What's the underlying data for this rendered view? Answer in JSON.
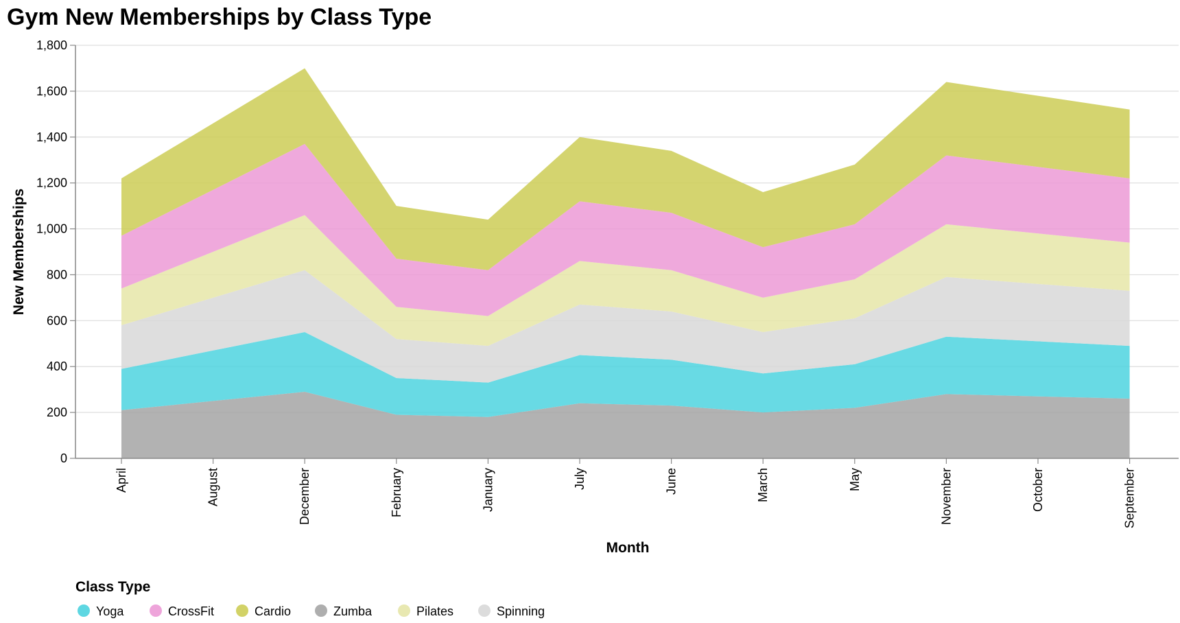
{
  "chart_data": {
    "type": "area",
    "stacked": true,
    "title": "Gym New Memberships by Class Type",
    "xlabel": "Month",
    "ylabel": "New Memberships",
    "ylim": [
      0,
      1800
    ],
    "yticks": [
      0,
      200,
      400,
      600,
      800,
      1000,
      1200,
      1400,
      1600,
      1800
    ],
    "ytick_labels": [
      "0",
      "200",
      "400",
      "600",
      "800",
      "1,000",
      "1,200",
      "1,400",
      "1,600",
      "1,800"
    ],
    "grid": true,
    "categories": [
      "April",
      "August",
      "December",
      "February",
      "January",
      "July",
      "June",
      "March",
      "May",
      "November",
      "October",
      "September"
    ],
    "stack_order": [
      "Zumba",
      "Yoga",
      "Spinning",
      "Pilates",
      "CrossFit",
      "Cardio"
    ],
    "series": [
      {
        "name": "Yoga",
        "color": "#4dd3df",
        "values": [
          180,
          220,
          260,
          160,
          150,
          210,
          200,
          170,
          190,
          250,
          240,
          230
        ]
      },
      {
        "name": "CrossFit",
        "color": "#ec9ad6",
        "values": [
          230,
          270,
          310,
          210,
          200,
          260,
          250,
          220,
          240,
          300,
          290,
          280
        ]
      },
      {
        "name": "Cardio",
        "color": "#cdcd56",
        "values": [
          250,
          290,
          330,
          230,
          220,
          280,
          270,
          240,
          260,
          320,
          310,
          300
        ]
      },
      {
        "name": "Zumba",
        "color": "#a5a5a5",
        "values": [
          210,
          250,
          290,
          190,
          180,
          240,
          230,
          200,
          220,
          280,
          270,
          260
        ]
      },
      {
        "name": "Pilates",
        "color": "#e6e6a8",
        "values": [
          160,
          200,
          240,
          140,
          130,
          190,
          180,
          150,
          170,
          230,
          220,
          210
        ]
      },
      {
        "name": "Spinning",
        "color": "#d8d8d8",
        "values": [
          190,
          230,
          270,
          170,
          160,
          220,
          210,
          180,
          200,
          260,
          250,
          240
        ]
      }
    ],
    "legend": {
      "title": "Class Type",
      "position": "bottom-left",
      "items": [
        "Yoga",
        "CrossFit",
        "Cardio",
        "Zumba",
        "Pilates",
        "Spinning"
      ]
    }
  }
}
